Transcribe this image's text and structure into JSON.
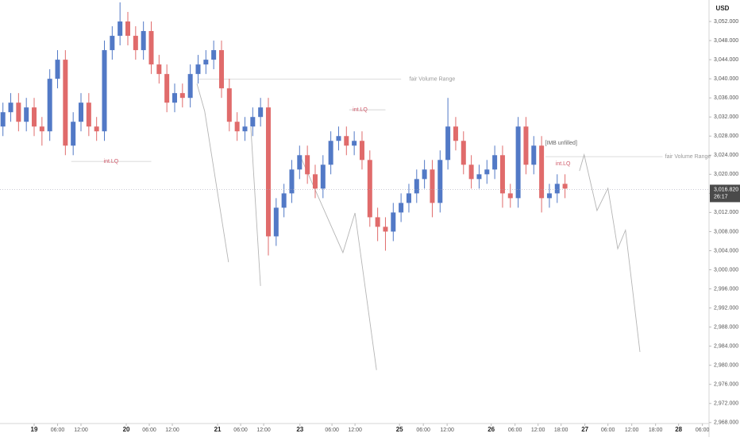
{
  "chart_data": {
    "type": "candlestick",
    "currency": "USD",
    "xlim": [
      -8.75,
      172.9
    ],
    "ylim": [
      2967.8,
      3056.5
    ],
    "xticks": [
      {
        "value": 0,
        "label": "19"
      },
      {
        "value": 6,
        "label": "06:00"
      },
      {
        "value": 12,
        "label": "12:00"
      },
      {
        "value": 23.6,
        "label": "20"
      },
      {
        "value": 29.5,
        "label": "06:00"
      },
      {
        "value": 35.4,
        "label": "12:00"
      },
      {
        "value": 47,
        "label": "21"
      },
      {
        "value": 52.9,
        "label": "06:00"
      },
      {
        "value": 58.8,
        "label": "12:00"
      },
      {
        "value": 68.1,
        "label": "23"
      },
      {
        "value": 76.3,
        "label": "06:00"
      },
      {
        "value": 82.2,
        "label": "12:00"
      },
      {
        "value": 93.6,
        "label": "25"
      },
      {
        "value": 99.7,
        "label": "06:00"
      },
      {
        "value": 105.8,
        "label": "12:00"
      },
      {
        "value": 117.1,
        "label": "26"
      },
      {
        "value": 123.2,
        "label": "06:00"
      },
      {
        "value": 129.1,
        "label": "12:00"
      },
      {
        "value": 135,
        "label": "18:00"
      },
      {
        "value": 141.1,
        "label": "27"
      },
      {
        "value": 147,
        "label": "06:00"
      },
      {
        "value": 153.1,
        "label": "12:00"
      },
      {
        "value": 159.2,
        "label": "18:00"
      },
      {
        "value": 165.1,
        "label": "28"
      },
      {
        "value": 171.2,
        "label": "06:00"
      }
    ],
    "yticks": [
      {
        "value": 2968,
        "label": "2,968.000"
      },
      {
        "value": 2972,
        "label": "2,972.000"
      },
      {
        "value": 2976,
        "label": "2,976.000"
      },
      {
        "value": 2980,
        "label": "2,980.000"
      },
      {
        "value": 2984,
        "label": "2,984.000"
      },
      {
        "value": 2988,
        "label": "2,988.000"
      },
      {
        "value": 2992,
        "label": "2,992.000"
      },
      {
        "value": 2996,
        "label": "2,996.000"
      },
      {
        "value": 3000,
        "label": "3,000.000"
      },
      {
        "value": 3004,
        "label": "3,004.000"
      },
      {
        "value": 3008,
        "label": "3,008.000"
      },
      {
        "value": 3012,
        "label": "3,012.000"
      },
      {
        "value": 3016,
        "label": "3,016.000"
      },
      {
        "value": 3020,
        "label": "3,020.000"
      },
      {
        "value": 3024,
        "label": "3,024.000"
      },
      {
        "value": 3028,
        "label": "3,028.000"
      },
      {
        "value": 3032,
        "label": "3,032.000"
      },
      {
        "value": 3036,
        "label": "3,036.000"
      },
      {
        "value": 3040,
        "label": "3,040.000"
      },
      {
        "value": 3044,
        "label": "3,044.000"
      },
      {
        "value": 3048,
        "label": "3,048.000"
      },
      {
        "value": 3052,
        "label": "3,052.000"
      }
    ],
    "up_color": "#5279c6",
    "down_color": "#e06b6b",
    "candles": {
      "x": [
        -8,
        -6,
        -4,
        -2,
        0,
        2,
        4,
        6,
        8,
        10,
        12,
        14,
        16,
        18,
        20,
        22,
        24,
        26,
        28,
        30,
        32,
        34,
        36,
        38,
        40,
        42,
        44,
        46,
        48,
        50,
        52,
        54,
        56,
        58,
        60,
        62,
        64,
        66,
        68,
        70,
        72,
        74,
        76,
        78,
        80,
        82,
        84,
        86,
        88,
        90,
        92,
        94,
        96,
        98,
        100,
        102,
        104,
        106,
        108,
        110,
        112,
        114,
        116,
        118,
        120,
        122,
        124,
        126,
        128,
        130,
        132,
        134,
        136
      ],
      "open": [
        3030,
        3033,
        3035,
        3031,
        3034,
        3030,
        3029,
        3040,
        3044,
        3026,
        3031,
        3035,
        3030,
        3029,
        3046,
        3049,
        3052,
        3049,
        3046,
        3050,
        3043,
        3041,
        3035,
        3037,
        3036,
        3041,
        3043,
        3044,
        3046,
        3038,
        3031,
        3029,
        3030,
        3032,
        3034,
        3007,
        3013,
        3016,
        3021,
        3024,
        3020,
        3017,
        3022,
        3027,
        3028,
        3026,
        3027,
        3023,
        3011,
        3009,
        3008,
        3012,
        3014,
        3016,
        3019,
        3021,
        3014,
        3023,
        3030,
        3027,
        3022,
        3019,
        3020,
        3021,
        3024,
        3016,
        3015,
        3030,
        3022,
        3026,
        3015,
        3016,
        3018
      ],
      "high": [
        3035,
        3037,
        3037,
        3036,
        3036,
        3032,
        3042,
        3046,
        3046,
        3033,
        3037,
        3037,
        3032,
        3048,
        3051,
        3056,
        3054,
        3051,
        3052,
        3052,
        3045,
        3043,
        3039,
        3039,
        3043,
        3045,
        3046,
        3048,
        3048,
        3040,
        3033,
        3032,
        3034,
        3036,
        3036,
        3015,
        3018,
        3023,
        3026,
        3026,
        3022,
        3024,
        3029,
        3030,
        3030,
        3029,
        3029,
        3025,
        3013,
        3011,
        3014,
        3016,
        3018,
        3021,
        3023,
        3023,
        3025,
        3036,
        3032,
        3029,
        3024,
        3022,
        3023,
        3026,
        3026,
        3018,
        3032,
        3032,
        3028,
        3028,
        3018,
        3020,
        3020
      ],
      "low": [
        3028,
        3031,
        3029,
        3029,
        3028,
        3026,
        3027,
        3038,
        3024,
        3024,
        3029,
        3028,
        3027,
        3027,
        3044,
        3047,
        3047,
        3044,
        3044,
        3041,
        3039,
        3033,
        3033,
        3034,
        3034,
        3039,
        3041,
        3042,
        3036,
        3029,
        3027,
        3027,
        3028,
        3030,
        3003,
        3005,
        3011,
        3014,
        3019,
        3018,
        3015,
        3015,
        3020,
        3025,
        3024,
        3024,
        3021,
        3009,
        3006,
        3004,
        3006,
        3010,
        3012,
        3014,
        3017,
        3011,
        3012,
        3021,
        3025,
        3020,
        3017,
        3017,
        3018,
        3019,
        3013,
        3013,
        3013,
        3020,
        3020,
        3012,
        3013,
        3014,
        3015
      ],
      "close": [
        3033,
        3035,
        3031,
        3034,
        3030,
        3029,
        3040,
        3044,
        3026,
        3031,
        3035,
        3030,
        3029,
        3046,
        3049,
        3052,
        3049,
        3046,
        3050,
        3043,
        3041,
        3035,
        3037,
        3036,
        3041,
        3043,
        3044,
        3046,
        3038,
        3031,
        3029,
        3030,
        3032,
        3034,
        3007,
        3013,
        3016,
        3021,
        3024,
        3020,
        3017,
        3022,
        3027,
        3028,
        3026,
        3027,
        3023,
        3011,
        3009,
        3008,
        3012,
        3014,
        3016,
        3019,
        3021,
        3014,
        3023,
        3030,
        3027,
        3022,
        3019,
        3020,
        3021,
        3024,
        3016,
        3015,
        3030,
        3022,
        3026,
        3015,
        3016,
        3018,
        3017
      ]
    },
    "projection": {
      "x": [
        41.7,
        43.7,
        49.8,
        null,
        55.5,
        58,
        null,
        68.5,
        79.1,
        82.2,
        87.7,
        null,
        139.7,
        140.9,
        142.8,
        144.2,
        147,
        149.5,
        151.5,
        155.2
      ],
      "y": [
        3039,
        3033.2,
        3001.6,
        null,
        3029.9,
        2996.6,
        null,
        3023.2,
        3003.6,
        3011.9,
        2979,
        null,
        3020.7,
        3024.1,
        3017.4,
        3012.4,
        3017.1,
        3004.4,
        3008.3,
        2982.8
      ]
    },
    "levels": [
      {
        "text": "fair Volume Range",
        "y": 3039.9,
        "x": [
          42,
          94
        ],
        "label_x": 102,
        "color": "#999999"
      },
      {
        "text": "fair Volume Range",
        "y": 3023.7,
        "x": [
          131,
          161
        ],
        "label_x": 167.5,
        "color": "#999999"
      },
      {
        "text": "int.LQ",
        "y": 3022.7,
        "x": [
          9.5,
          30
        ],
        "label_x": 19.7,
        "color": "#d05a6a"
      },
      {
        "text": "int.LQ",
        "y": 3033.5,
        "x": [
          80.7,
          90
        ],
        "label_x": 83.5,
        "color": "#d05a6a"
      }
    ],
    "annotations": [
      {
        "text": "[IMB unfilled]",
        "x": 135,
        "y": 3026.5,
        "color": "#666666"
      },
      {
        "text": "int.LQ",
        "x": 135.5,
        "y": 3022.2,
        "color": "#d05a6a"
      }
    ],
    "last_price": {
      "value": 3016.82,
      "label": "3,016.820"
    },
    "countdown": "26:17"
  }
}
